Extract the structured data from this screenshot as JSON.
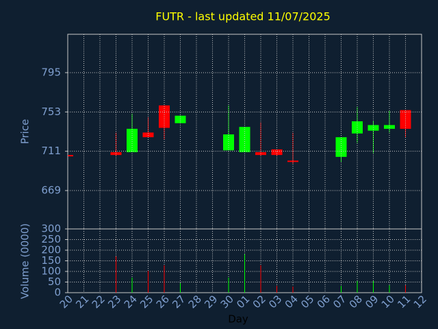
{
  "chart_data": [
    {
      "type": "candlestick",
      "title": "FUTR - last updated 11/07/2025",
      "ylabel": "Price",
      "ylim": [
        628,
        836
      ],
      "yticks": [
        669,
        711,
        753,
        795
      ],
      "grid": true,
      "up_color": "#00ff00",
      "down_color": "#ff0000",
      "open": [
        707,
        null,
        null,
        710,
        710,
        731,
        760,
        741,
        null,
        null,
        712,
        710,
        710,
        713,
        701,
        null,
        null,
        705,
        730,
        733,
        735,
        755,
        null
      ],
      "high": [
        707,
        null,
        null,
        731,
        751,
        747,
        760,
        749,
        null,
        null,
        760,
        737,
        742,
        713,
        731,
        null,
        null,
        726,
        758,
        743,
        754,
        755,
        null
      ],
      "low": [
        706,
        null,
        null,
        706,
        710,
        726,
        724,
        741,
        null,
        null,
        712,
        710,
        706,
        706,
        697,
        null,
        null,
        699,
        720,
        709,
        731,
        726,
        null
      ],
      "close": [
        706,
        null,
        null,
        707,
        735,
        726,
        736,
        749,
        null,
        null,
        729,
        737,
        707,
        707,
        700,
        null,
        null,
        726,
        743,
        739,
        739,
        735,
        null
      ]
    },
    {
      "type": "bar",
      "xlabel": "Day",
      "ylabel": "Volume (0000)",
      "x": [
        "20",
        "21",
        "22",
        "23",
        "24",
        "25",
        "26",
        "27",
        "28",
        "29",
        "30",
        "01",
        "02",
        "03",
        "04",
        "05",
        "06",
        "07",
        "08",
        "09",
        "10",
        "11",
        "12"
      ],
      "ylim": [
        0,
        300
      ],
      "yticks": [
        0,
        50,
        100,
        150,
        200,
        250,
        300
      ],
      "grid": true,
      "values": [
        null,
        null,
        null,
        171,
        71,
        103,
        129,
        45,
        null,
        null,
        71,
        181,
        129,
        32,
        29,
        null,
        null,
        32,
        55,
        55,
        35,
        35,
        null
      ]
    }
  ]
}
